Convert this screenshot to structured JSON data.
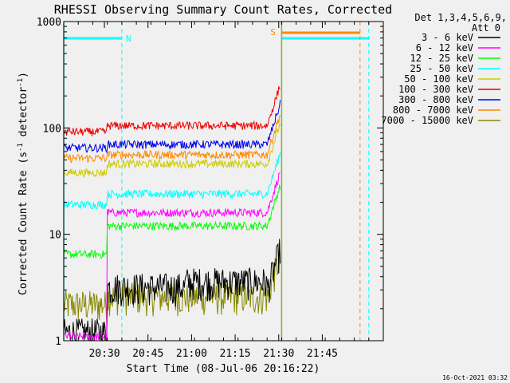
{
  "chart_data": {
    "type": "line",
    "title": "RHESSI Observing Summary Count Rates, Corrected",
    "xlabel": "Start Time (08-Jul-06 20:16:22)",
    "ylabel_main": "Corrected Count Rate (s",
    "ylabel_sup1": "-1",
    "ylabel_mid": " detector",
    "ylabel_sup2": "-1",
    "ylabel_end": ")",
    "y_scale": "log",
    "ylim": [
      1,
      1000
    ],
    "xlim_minutes_after_2016": [
      0,
      110
    ],
    "y_ticks": [
      "1",
      "10",
      "100",
      "1000"
    ],
    "x_ticks": [
      {
        "label": "20:30",
        "t": 14
      },
      {
        "label": "20:45",
        "t": 29
      },
      {
        "label": "21:00",
        "t": 44
      },
      {
        "label": "21:15",
        "t": 59
      },
      {
        "label": "21:30",
        "t": 74
      },
      {
        "label": "21:45",
        "t": 89
      }
    ],
    "legend_header": [
      "Det 1,3,4,5,6,9,",
      "Att 0"
    ],
    "legend_position": "right",
    "series": [
      {
        "name": "3 - 6 keV",
        "color": "#000000",
        "level": 4.0
      },
      {
        "name": "6 - 12 keV",
        "color": "#ff00ff",
        "level": 16
      },
      {
        "name": "12 - 25 keV",
        "color": "#00ff00",
        "level": 12
      },
      {
        "name": "25 - 50 keV",
        "color": "#00ffff",
        "level": 24
      },
      {
        "name": "50 - 100 keV",
        "color": "#cccc00",
        "level": 45
      },
      {
        "name": "100 - 300 keV",
        "color": "#ee0000",
        "level": 100
      },
      {
        "name": "300 - 800 keV",
        "color": "#0000ee",
        "level": 68
      },
      {
        "name": "800 - 7000 keV",
        "color": "#ff8800",
        "level": 55
      },
      {
        "name": "7000 - 15000 keV",
        "color": "#888800",
        "level": 3.0
      }
    ],
    "annotations": {
      "night_label": "N",
      "saa_label": "S"
    },
    "footer_date": "16-Oct-2021 03:32"
  }
}
